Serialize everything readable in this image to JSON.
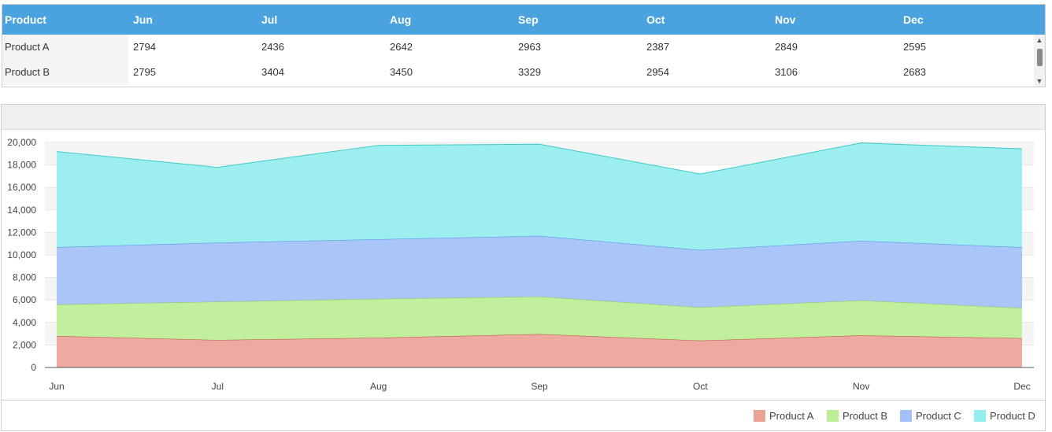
{
  "grid": {
    "columns": [
      "Product",
      "Jun",
      "Jul",
      "Aug",
      "Sep",
      "Oct",
      "Nov",
      "Dec"
    ],
    "rows": [
      [
        "Product A",
        "2794",
        "2436",
        "2642",
        "2963",
        "2387",
        "2849",
        "2595"
      ],
      [
        "Product B",
        "2795",
        "3404",
        "3450",
        "3329",
        "2954",
        "3106",
        "2683"
      ]
    ]
  },
  "chart_data": {
    "type": "area",
    "stacked": true,
    "categories": [
      "Jun",
      "Jul",
      "Aug",
      "Sep",
      "Oct",
      "Nov",
      "Dec"
    ],
    "ylim": [
      0,
      20000
    ],
    "yticks": [
      "0",
      "2,000",
      "4,000",
      "6,000",
      "8,000",
      "10,000",
      "12,000",
      "14,000",
      "16,000",
      "18,000",
      "20,000"
    ],
    "grid": true,
    "legend_position": "bottom-right",
    "series": [
      {
        "name": "Product A",
        "color": "#eba398",
        "line": "#c0504d",
        "values": [
          2794,
          2436,
          2642,
          2963,
          2387,
          2849,
          2595
        ]
      },
      {
        "name": "Product B",
        "color": "#bdee96",
        "line": "#92d050",
        "values": [
          2795,
          3404,
          3450,
          3329,
          2954,
          3106,
          2683
        ]
      },
      {
        "name": "Product C",
        "color": "#a3c1f8",
        "line": "#5b8def",
        "values": [
          5100,
          5250,
          5300,
          5400,
          5100,
          5300,
          5400
        ]
      },
      {
        "name": "Product D",
        "color": "#95eeee",
        "line": "#3cc8c8",
        "values": [
          8500,
          6700,
          8350,
          8150,
          6750,
          8700,
          8750
        ]
      }
    ]
  }
}
